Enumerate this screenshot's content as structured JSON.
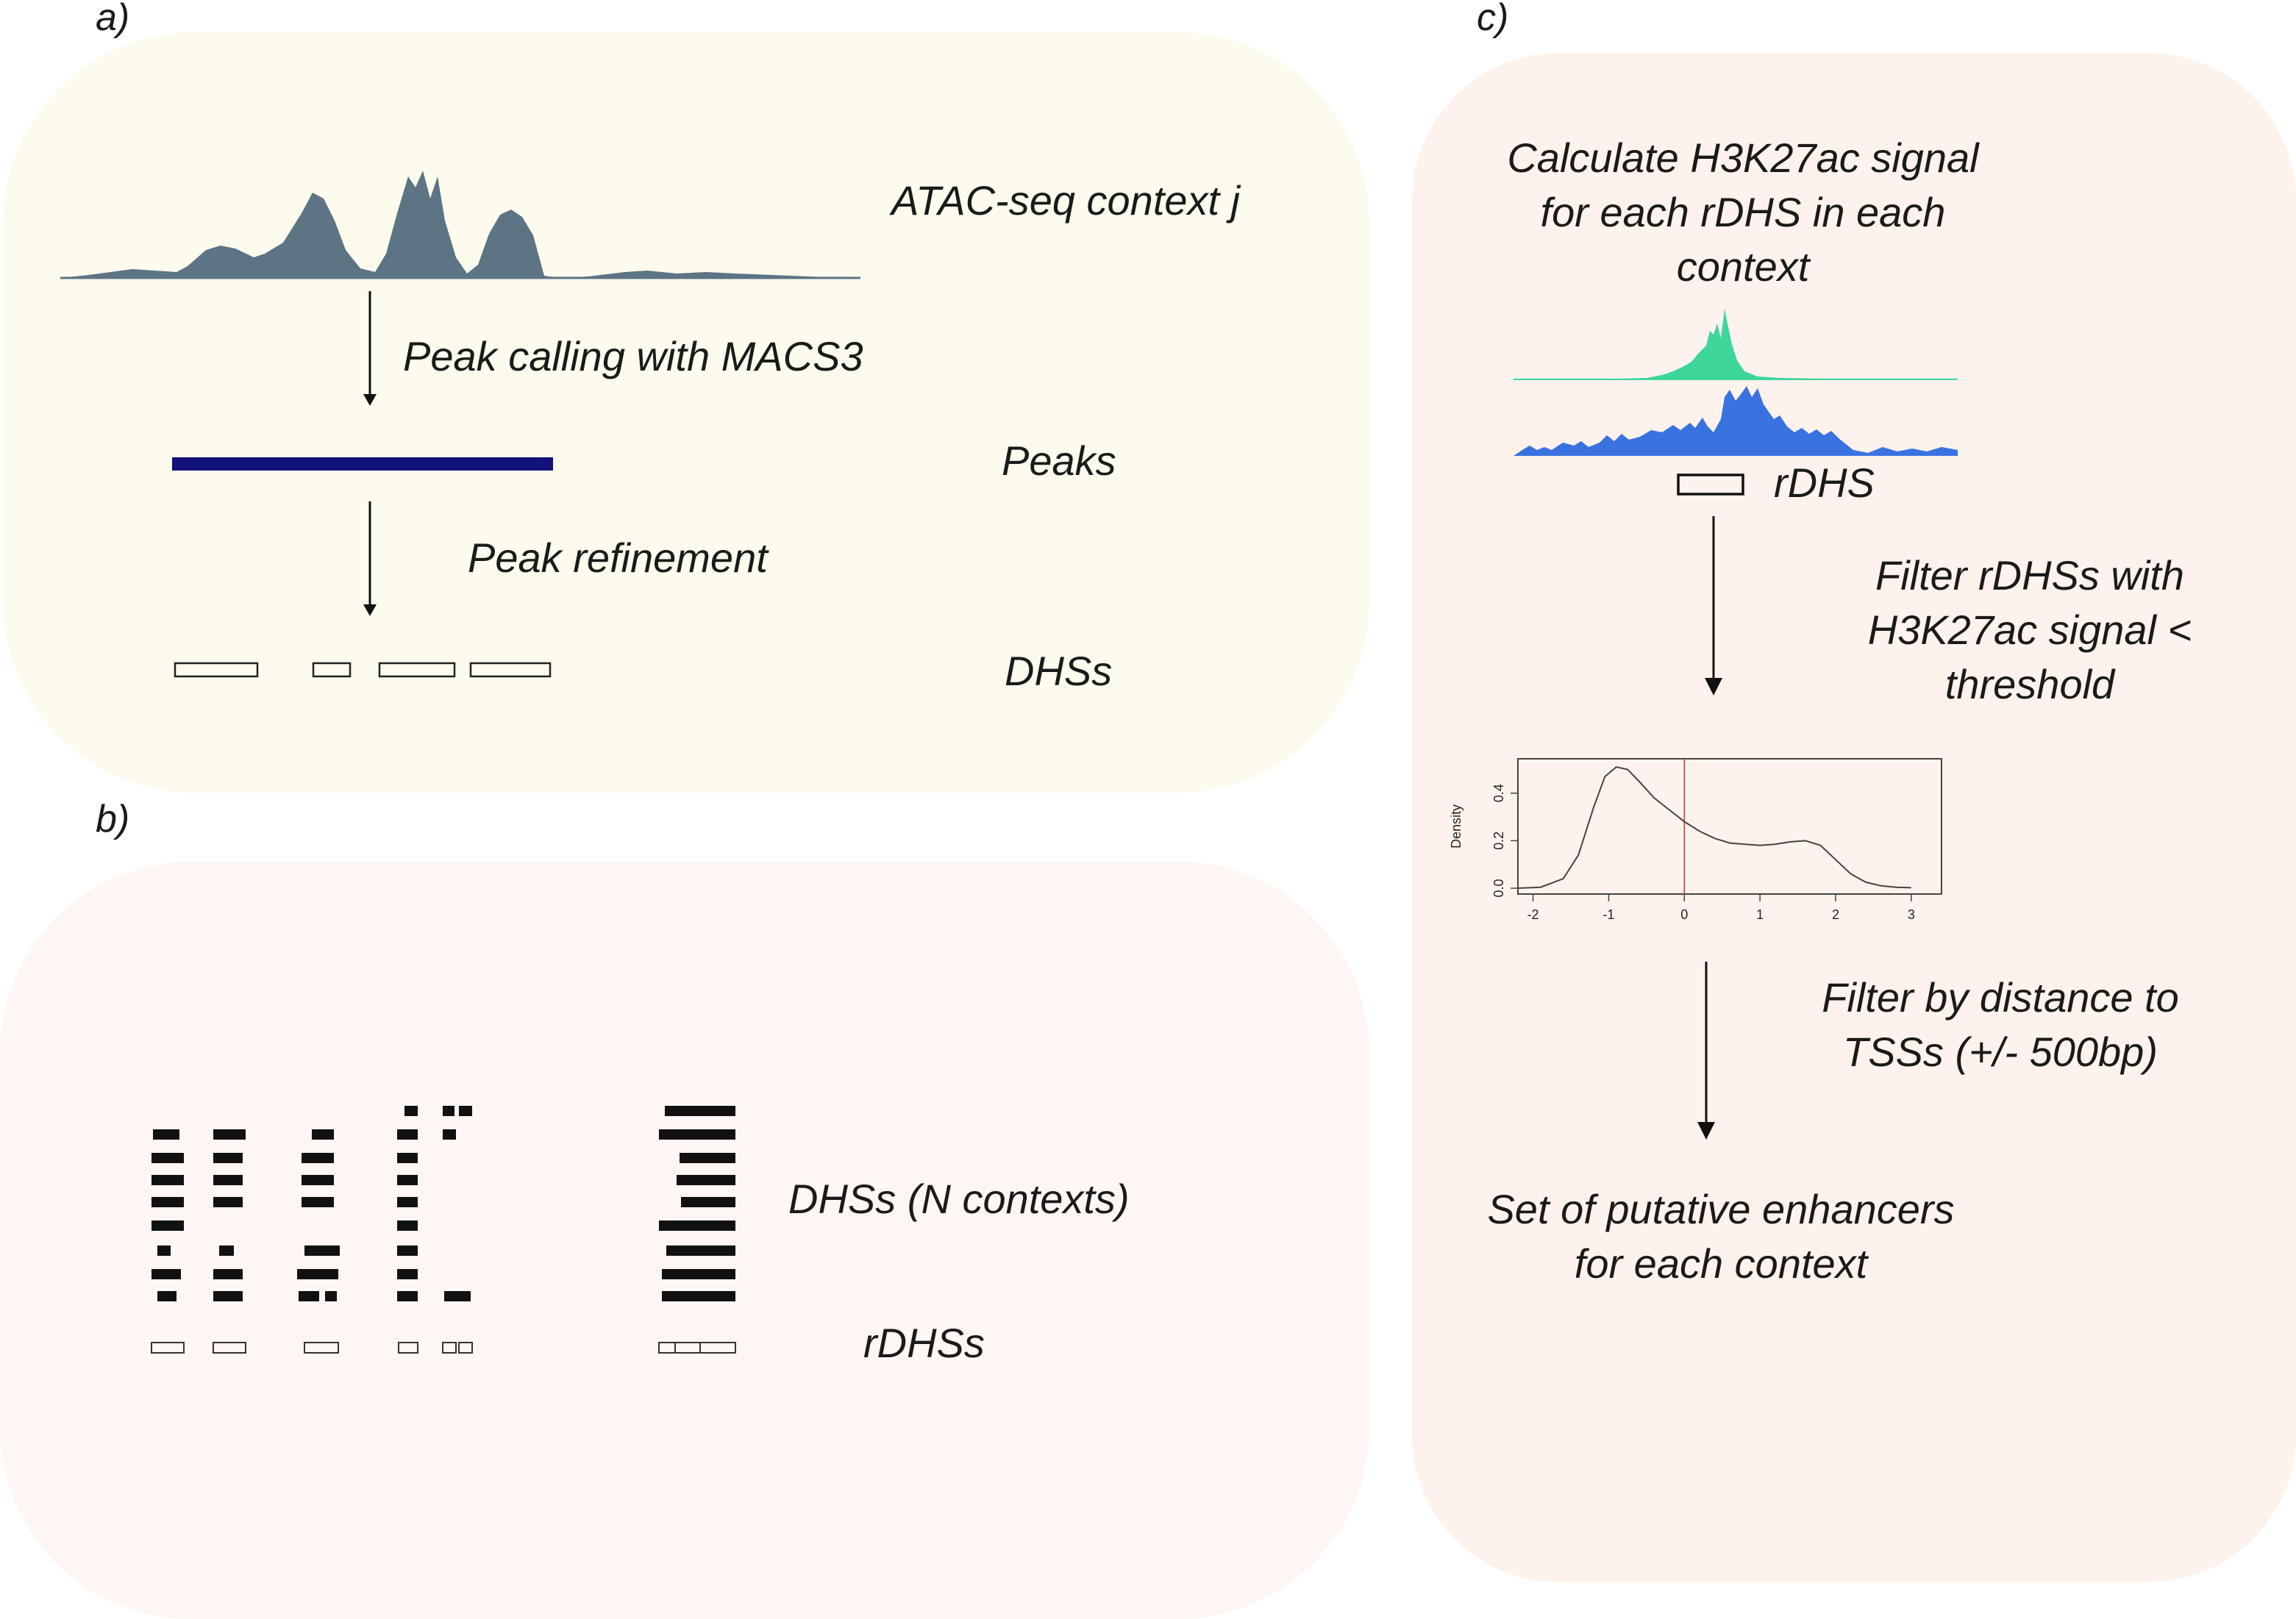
{
  "panel_a": {
    "letter": "a)",
    "bg_color": "#fdfaee",
    "track_color": "#5c7484",
    "peak_bar_color": "#12127a",
    "atac_label": "ATAC-seq context j",
    "step1_label": "Peak calling with MACS3",
    "peaks_label": "Peaks",
    "step2_label": "Peak refinement",
    "dhss_label": "DHSs"
  },
  "panel_b": {
    "letter": "b)",
    "bg_color": "#fdf6f2",
    "dhss_label": "DHSs (N contexts)",
    "rdhss_label": "rDHSs"
  },
  "panel_c": {
    "letter": "c)",
    "bg_color": "#fdf3ec",
    "signal_top_color": "#3ed69a",
    "signal_bottom_color": "#3a72e0",
    "calc_label": "Calculate H3K27ac signal for each rDHS in each context",
    "rdhs_label": "rDHS",
    "filter1_label": "Filter rDHSs with H3K27ac signal < threshold",
    "filter2_label": "Filter by distance to TSSs (+/- 500bp)",
    "result_label": "Set of putative enhancers for each context"
  },
  "chart_data": {
    "type": "line",
    "title": "",
    "xlabel": "",
    "ylabel": "Density",
    "xlim": [
      -2.2,
      3.4
    ],
    "ylim": [
      0,
      0.52
    ],
    "x_ticks": [
      "-2",
      "-1",
      "0",
      "1",
      "2",
      "3"
    ],
    "y_ticks": [
      "0.0",
      "0.2",
      "0.4"
    ],
    "threshold_x": 0,
    "threshold_color": "#cc3333",
    "series": [
      {
        "x": [
          -2.2,
          -1.9,
          -1.6,
          -1.4,
          -1.2,
          -1.05,
          -0.9,
          -0.75,
          -0.6,
          -0.4,
          -0.2,
          0,
          0.2,
          0.4,
          0.6,
          0.8,
          1.0,
          1.2,
          1.4,
          1.6,
          1.8,
          2.0,
          2.2,
          2.4,
          2.6,
          2.8,
          3.0
        ],
        "y": [
          0.0,
          0.004,
          0.04,
          0.14,
          0.34,
          0.47,
          0.51,
          0.5,
          0.45,
          0.38,
          0.33,
          0.28,
          0.24,
          0.21,
          0.19,
          0.185,
          0.18,
          0.185,
          0.195,
          0.2,
          0.18,
          0.12,
          0.06,
          0.025,
          0.01,
          0.004,
          0.002
        ]
      }
    ]
  }
}
